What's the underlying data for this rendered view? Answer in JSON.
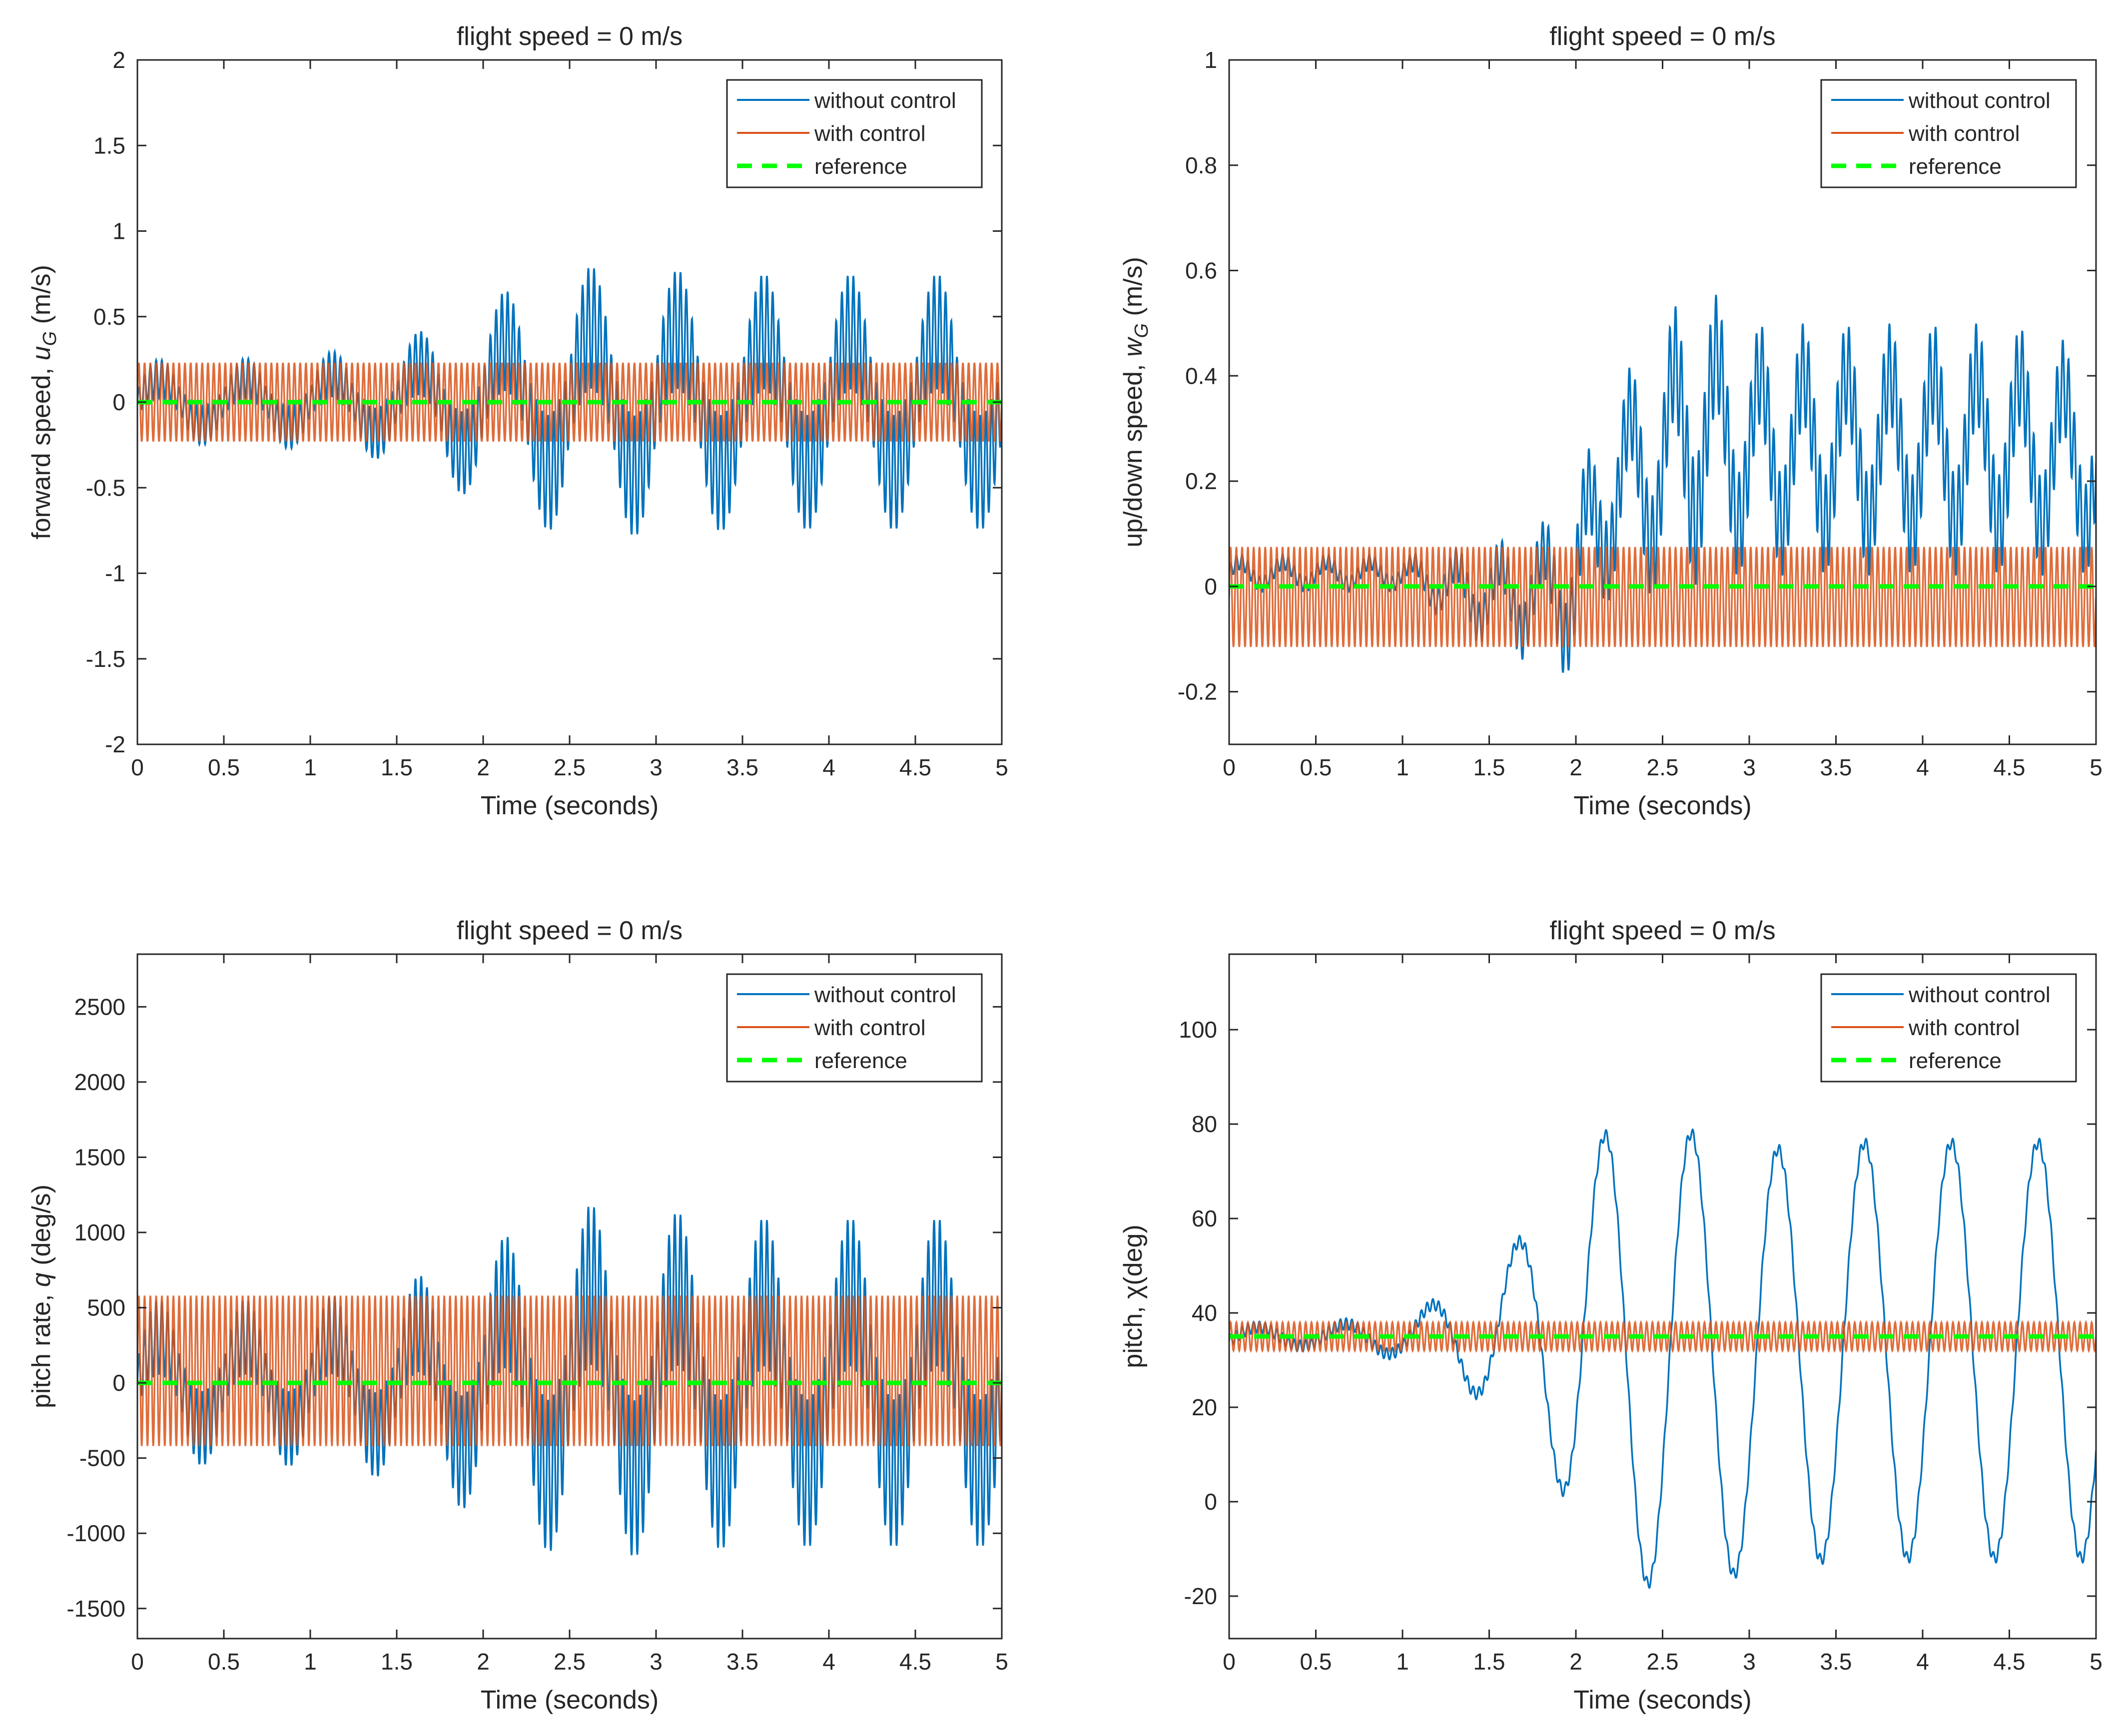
{
  "chart_data": [
    {
      "type": "line",
      "title": "flight speed = 0 m/s",
      "xlabel": "Time (seconds)",
      "ylabel": "forward speed, u_G (m/s)",
      "xlim": [
        0,
        5
      ],
      "ylim": [
        -2,
        2
      ],
      "xticks": [
        0,
        0.5,
        1,
        1.5,
        2,
        2.5,
        3,
        3.5,
        4,
        4.5,
        5
      ],
      "yticks": [
        -2,
        -1.5,
        -1,
        -0.5,
        0,
        0.5,
        1,
        1.5,
        2
      ],
      "legend_position": "top-right",
      "series": [
        {
          "name": "without control",
          "color": "#0072BD",
          "x": [
            0,
            0.5,
            1,
            1.5,
            2,
            2.5,
            3,
            3.5,
            4,
            4.5,
            5
          ],
          "envelope": [
            0.25,
            0.25,
            0.28,
            0.35,
            0.6,
            0.8,
            0.78,
            0.75,
            0.75,
            0.75,
            0.75
          ],
          "oscillation_period": 0.5,
          "fast_frequency_hz": 30
        },
        {
          "name": "with control",
          "color": "#D95319",
          "x": [
            0,
            5
          ],
          "amplitude": 0.23,
          "offset": 0.0,
          "fast_frequency_hz": 30
        },
        {
          "name": "reference",
          "color": "#00FF00",
          "style": "dashed",
          "x": [
            0,
            5
          ],
          "y": [
            0,
            0
          ]
        }
      ]
    },
    {
      "type": "line",
      "title": "flight speed = 0 m/s",
      "xlabel": "Time (seconds)",
      "ylabel": "up/down speed, w_G (m/s)",
      "xlim": [
        0,
        5
      ],
      "ylim": [
        -0.3,
        1
      ],
      "xticks": [
        0,
        0.5,
        1,
        1.5,
        2,
        2.5,
        3,
        3.5,
        4,
        4.5,
        5
      ],
      "yticks": [
        -0.2,
        0,
        0.2,
        0.4,
        0.6,
        0.8,
        1
      ],
      "legend_position": "top-right",
      "series": [
        {
          "name": "without control",
          "color": "#0072BD",
          "x": [
            0,
            0.5,
            1,
            1.5,
            1.8,
            2,
            2.2,
            2.5,
            2.65,
            3,
            3.5,
            4,
            4.5,
            5
          ],
          "upper": [
            0.06,
            0.06,
            0.06,
            0.08,
            0.12,
            0.2,
            0.38,
            0.48,
            0.6,
            0.5,
            0.5,
            0.5,
            0.5,
            0.45
          ],
          "lower": [
            -0.01,
            -0.01,
            -0.01,
            -0.12,
            -0.15,
            -0.18,
            -0.02,
            -0.02,
            0.0,
            0.02,
            0.02,
            0.02,
            0.02,
            0.02
          ],
          "oscillation_period": 0.25,
          "fast_frequency_hz": 30
        },
        {
          "name": "with control",
          "color": "#D95319",
          "x": [
            0,
            5
          ],
          "amplitude": 0.095,
          "offset": -0.02,
          "fast_frequency_hz": 30
        },
        {
          "name": "reference",
          "color": "#00FF00",
          "style": "dashed",
          "x": [
            0,
            5
          ],
          "y": [
            0,
            0
          ]
        }
      ]
    },
    {
      "type": "line",
      "title": "flight speed = 0 m/s",
      "xlabel": "Time (seconds)",
      "ylabel": "pitch rate, q (deg/s)",
      "xlim": [
        0,
        5
      ],
      "ylim": [
        -1700,
        2850
      ],
      "xticks": [
        0,
        0.5,
        1,
        1.5,
        2,
        2.5,
        3,
        3.5,
        4,
        4.5,
        5
      ],
      "yticks": [
        -1500,
        -1000,
        -500,
        0,
        500,
        1000,
        1500,
        2000,
        2500
      ],
      "legend_position": "top-right",
      "series": [
        {
          "name": "without control",
          "color": "#0072BD",
          "x": [
            0,
            0.5,
            1,
            1.5,
            2,
            2.5,
            3,
            3.5,
            4,
            4.5,
            5
          ],
          "envelope": [
            550,
            550,
            560,
            650,
            900,
            1200,
            1150,
            1100,
            1100,
            1100,
            1100
          ],
          "oscillation_period": 0.5,
          "fast_frequency_hz": 30
        },
        {
          "name": "with control",
          "color": "#D95319",
          "x": [
            0,
            5
          ],
          "amplitude": 500,
          "offset": 80,
          "fast_frequency_hz": 30
        },
        {
          "name": "reference",
          "color": "#00FF00",
          "style": "dashed",
          "x": [
            0,
            5
          ],
          "y": [
            0,
            0
          ]
        }
      ]
    },
    {
      "type": "line",
      "title": "flight speed = 0 m/s",
      "xlabel": "Time (seconds)",
      "ylabel": "pitch, χ (deg)",
      "xlim": [
        0,
        5
      ],
      "ylim": [
        -29,
        116
      ],
      "xticks": [
        0,
        0.5,
        1,
        1.5,
        2,
        2.5,
        3,
        3.5,
        4,
        4.5,
        5
      ],
      "yticks": [
        -20,
        0,
        20,
        40,
        60,
        80,
        100
      ],
      "legend_position": "top-right",
      "series": [
        {
          "name": "without control",
          "color": "#0072BD",
          "x": [
            0,
            0.5,
            1,
            1.25,
            1.5,
            1.75,
            2,
            2.25,
            2.5,
            2.75,
            3,
            3.5,
            4,
            4.5,
            5
          ],
          "center": [
            35,
            35,
            35,
            35,
            35,
            36,
            35,
            32,
            30,
            30,
            30,
            32,
            32,
            32,
            32
          ],
          "amplitude": [
            2,
            2,
            4,
            8,
            14,
            22,
            38,
            48,
            48,
            48,
            44,
            44,
            44,
            44,
            44
          ],
          "oscillation_period": 0.5,
          "fast_frequency_hz": 30
        },
        {
          "name": "with control",
          "color": "#D95319",
          "x": [
            0,
            5
          ],
          "amplitude": 3,
          "offset": 35,
          "fast_frequency_hz": 30
        },
        {
          "name": "reference",
          "color": "#00FF00",
          "style": "dashed",
          "x": [
            0,
            5
          ],
          "y": [
            35,
            35
          ]
        }
      ]
    }
  ]
}
